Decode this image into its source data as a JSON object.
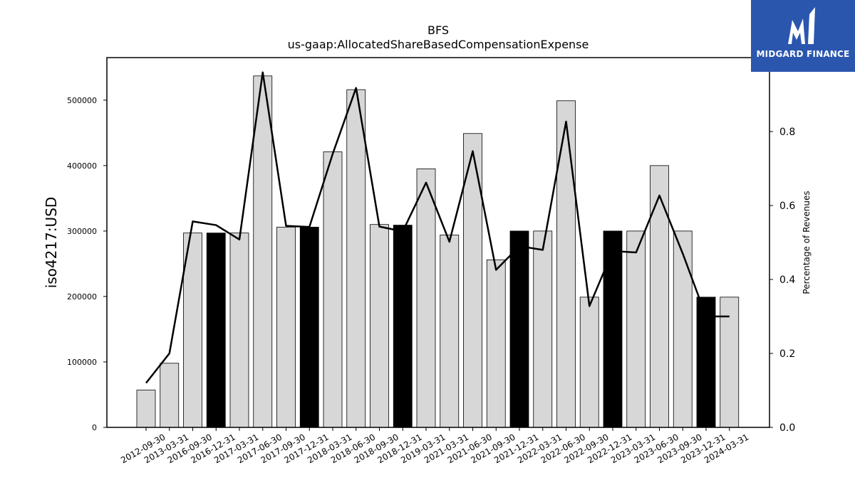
{
  "chart_data": {
    "type": "bar",
    "title": "BFS",
    "subtitle": "us-gaap:AllocatedShareBasedCompensationExpense",
    "ylabel": "iso4217:USD",
    "y2label": "Percentage of Revenues",
    "ylim": [
      0,
      565000
    ],
    "y2lim": [
      0,
      1.0
    ],
    "yticks": [
      "0",
      "100000",
      "200000",
      "300000",
      "400000",
      "500000"
    ],
    "y2ticks": [
      "0.0",
      "0.2",
      "0.4",
      "0.6",
      "0.8"
    ],
    "categories": [
      "2012-09-30",
      "2013-03-31",
      "2016-09-30",
      "2016-12-31",
      "2017-03-31",
      "2017-06-30",
      "2017-09-30",
      "2017-12-31",
      "2018-03-31",
      "2018-06-30",
      "2018-09-30",
      "2018-12-31",
      "2019-03-31",
      "2021-03-31",
      "2021-06-30",
      "2021-09-30",
      "2021-12-31",
      "2022-03-31",
      "2022-06-30",
      "2022-09-30",
      "2022-12-31",
      "2023-03-31",
      "2023-06-30",
      "2023-09-30",
      "2023-12-31",
      "2024-03-31"
    ],
    "values": [
      57000,
      98000,
      297000,
      297000,
      297000,
      537000,
      306000,
      306000,
      421000,
      516000,
      310000,
      309000,
      395000,
      294000,
      449000,
      256000,
      300000,
      300000,
      499000,
      199000,
      300000,
      300000,
      400000,
      300000,
      199000,
      199000
    ],
    "highlight": [
      false,
      false,
      false,
      true,
      false,
      false,
      false,
      true,
      false,
      false,
      false,
      true,
      false,
      false,
      false,
      false,
      true,
      false,
      false,
      false,
      true,
      false,
      false,
      false,
      true,
      false
    ],
    "line_series": {
      "axis": "right",
      "values": [
        0.12,
        0.2,
        0.557,
        0.547,
        0.508,
        0.96,
        0.545,
        0.542,
        0.74,
        0.918,
        0.543,
        0.53,
        0.662,
        0.502,
        0.747,
        0.426,
        0.49,
        0.48,
        0.827,
        0.328,
        0.477,
        0.473,
        0.627,
        0.47,
        0.3,
        0.3
      ]
    },
    "colors": {
      "bar": "#d7d7d7",
      "bar_highlight": "#000000",
      "line": "#000000"
    },
    "grid": false
  },
  "logo": {
    "text": "MIDGARD FINANCE",
    "background": "#2a56ae",
    "icon": "midgard-m-icon"
  }
}
